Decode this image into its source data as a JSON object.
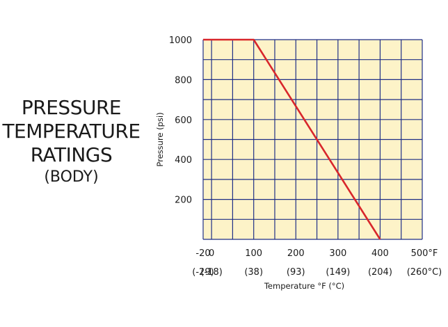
{
  "title": {
    "lines": [
      "PRESSURE",
      "TEMPERATURE",
      "RATINGS"
    ],
    "subtitle": "(BODY)"
  },
  "chart_data": {
    "type": "line",
    "xlabel": "Temperature °F (°C)",
    "ylabel": "Pressure (psi)",
    "xlim": [
      -20,
      500
    ],
    "ylim": [
      0,
      1000
    ],
    "x_ticks": [
      {
        "value": -20,
        "label": "-20",
        "sub": "(-29)"
      },
      {
        "value": 0,
        "label": "0",
        "sub": "(-18)"
      },
      {
        "value": 100,
        "label": "100",
        "sub": "(38)"
      },
      {
        "value": 200,
        "label": "200",
        "sub": "(93)"
      },
      {
        "value": 300,
        "label": "300",
        "sub": "(149)"
      },
      {
        "value": 400,
        "label": "400",
        "sub": "(204)"
      },
      {
        "value": 500,
        "label": "500°F",
        "sub": "(260°C)"
      }
    ],
    "y_ticks": [
      {
        "value": 200,
        "label": "200"
      },
      {
        "value": 400,
        "label": "400"
      },
      {
        "value": 600,
        "label": "600"
      },
      {
        "value": 800,
        "label": "800"
      },
      {
        "value": 1000,
        "label": "1000"
      }
    ],
    "grid_x_step": 50,
    "grid_y_step": 100,
    "grid": true,
    "series": [
      {
        "x": [
          -20,
          100,
          400
        ],
        "y": [
          1000,
          1000,
          0
        ]
      }
    ],
    "colors": {
      "background": "#fdf3c8",
      "grid": "#1f2f86",
      "line": "#d8262b"
    }
  }
}
